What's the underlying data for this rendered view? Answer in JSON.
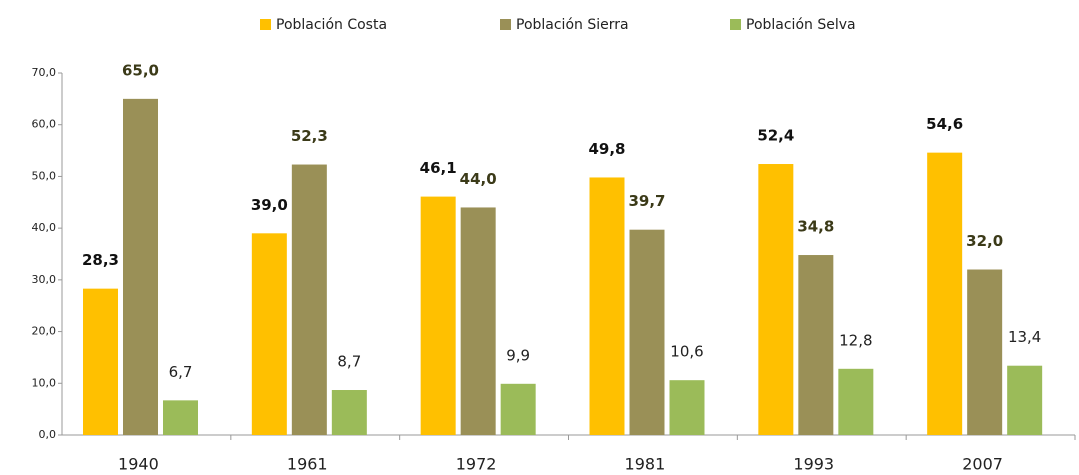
{
  "chart_data": {
    "type": "bar",
    "categories": [
      "1940",
      "1961",
      "1972",
      "1981",
      "1993",
      "2007"
    ],
    "series": [
      {
        "name": "Población Costa",
        "color": "#FFC000",
        "values": [
          28.3,
          39.0,
          46.1,
          49.8,
          52.4,
          54.6
        ],
        "value_labels": [
          "28,3",
          "39,0",
          "46,1",
          "49,8",
          "52,4",
          "54,6"
        ]
      },
      {
        "name": "Población Sierra",
        "color": "#9A9057",
        "values": [
          65.0,
          52.3,
          44.0,
          39.7,
          34.8,
          32.0
        ],
        "value_labels": [
          "65,0",
          "52,3",
          "44,0",
          "39,7",
          "34,8",
          "32,0"
        ]
      },
      {
        "name": "Población Selva",
        "color": "#9BBB59",
        "values": [
          6.7,
          8.7,
          9.9,
          10.6,
          12.8,
          13.4
        ],
        "value_labels": [
          "6,7",
          "8,7",
          "9,9",
          "10,6",
          "12,8",
          "13,4"
        ]
      }
    ],
    "ylim": [
      0,
      70
    ],
    "yticks": [
      {
        "value": 0,
        "label": "0,0"
      },
      {
        "value": 10,
        "label": "10,0"
      },
      {
        "value": 20,
        "label": "20,0"
      },
      {
        "value": 30,
        "label": "30,0"
      },
      {
        "value": 40,
        "label": "40,0"
      },
      {
        "value": 50,
        "label": "50,0"
      },
      {
        "value": 60,
        "label": "60,0"
      },
      {
        "value": 70,
        "label": "70,0"
      }
    ],
    "legend": "top",
    "grid": false
  }
}
